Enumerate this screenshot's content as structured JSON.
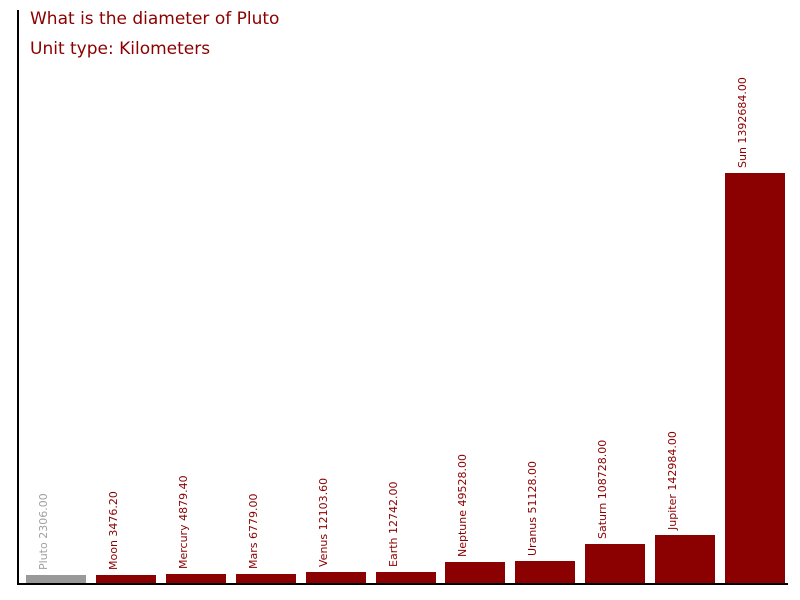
{
  "chart": {
    "title": "What is the diameter of Pluto",
    "subtitle": "Unit type: Kilometers"
  },
  "colors": {
    "bar": "#8b0000",
    "bar_highlight": "#999999",
    "label": "#8b0000",
    "label_highlight": "#a0a0a0",
    "title": "#8b0000",
    "axis": "#000000",
    "background": "#ffffff"
  },
  "chart_data": {
    "type": "bar",
    "title": "What is the diameter of Pluto",
    "subtitle": "Unit type: Kilometers",
    "unit": "Kilometers",
    "categories": [
      "Pluto",
      "Moon",
      "Mercury",
      "Mars",
      "Venus",
      "Earth",
      "Neptune",
      "Uranus",
      "Saturn",
      "Jupiter",
      "Sun"
    ],
    "values": [
      2306.0,
      3476.2,
      4879.4,
      6779.0,
      12103.6,
      12742.0,
      49528.0,
      51128.0,
      108728.0,
      142984.0,
      1392684.0
    ],
    "bar_labels": [
      "Pluto 2306.00",
      "Moon 3476.20",
      "Mercury 4879.40",
      "Mars 6779.00",
      "Venus 12103.60",
      "Earth 12742.00",
      "Neptune 49528.00",
      "Uranus 51128.00",
      "Saturn 108728.00",
      "Jupiter 142984.00",
      "Sun 1392684.00"
    ],
    "highlight_category": "Pluto",
    "bar_label_rotation": -90,
    "legend": false,
    "gridlines": false,
    "y_ticks": [],
    "x_ticks": [],
    "sorted": "ascending by value"
  }
}
